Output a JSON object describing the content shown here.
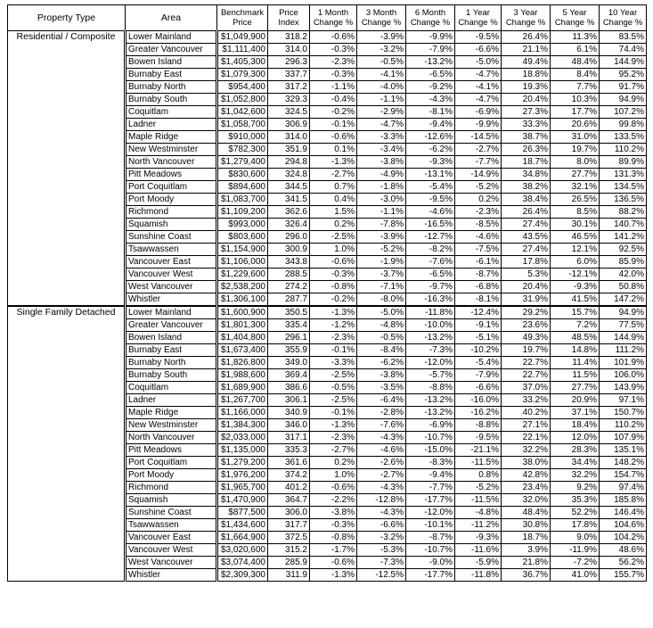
{
  "table": {
    "header": [
      "Property Type",
      "Area",
      "Benchmark Price",
      "Price Index",
      "1 Month Change %",
      "3 Month Change %",
      "6 Month Change %",
      "1 Year Change %",
      "3 Year Change %",
      "5 Year Change %",
      "10 Year Change %"
    ],
    "groups": [
      {
        "property_type": "Residential / Composite",
        "rows": [
          [
            "Lower Mainland",
            "$1,049,900",
            "318.2",
            "-0.6%",
            "-3.9%",
            "-9.9%",
            "-9.5%",
            "26.4%",
            "11.3%",
            "83.5%"
          ],
          [
            "Greater Vancouver",
            "$1,111,400",
            "314.0",
            "-0.3%",
            "-3.2%",
            "-7.9%",
            "-6.6%",
            "21.1%",
            "6.1%",
            "74.4%"
          ],
          [
            "Bowen Island",
            "$1,405,300",
            "296.3",
            "-2.3%",
            "-0.5%",
            "-13.2%",
            "-5.0%",
            "49.4%",
            "48.4%",
            "144.9%"
          ],
          [
            "Burnaby East",
            "$1,079,300",
            "337.7",
            "-0.3%",
            "-4.1%",
            "-6.5%",
            "-4.7%",
            "18.8%",
            "8.4%",
            "95.2%"
          ],
          [
            "Burnaby North",
            "$954,400",
            "317.2",
            "-1.1%",
            "-4.0%",
            "-9.2%",
            "-4.1%",
            "19.3%",
            "7.7%",
            "91.7%"
          ],
          [
            "Burnaby South",
            "$1,052,800",
            "329.3",
            "-0.4%",
            "-1.1%",
            "-4.3%",
            "-4.7%",
            "20.4%",
            "10.3%",
            "94.9%"
          ],
          [
            "Coquitlam",
            "$1,042,600",
            "324.5",
            "-0.2%",
            "-2.9%",
            "-8.1%",
            "-6.9%",
            "27.3%",
            "17.7%",
            "107.2%"
          ],
          [
            "Ladner",
            "$1,058,700",
            "306.9",
            "-0.1%",
            "-4.7%",
            "-9.4%",
            "-9.9%",
            "33.3%",
            "20.6%",
            "99.8%"
          ],
          [
            "Maple Ridge",
            "$910,000",
            "314.0",
            "-0.6%",
            "-3.3%",
            "-12.6%",
            "-14.5%",
            "38.7%",
            "31.0%",
            "133.5%"
          ],
          [
            "New Westminster",
            "$782,300",
            "351.9",
            "0.1%",
            "-3.4%",
            "-6.2%",
            "-2.7%",
            "26.3%",
            "19.7%",
            "110.2%"
          ],
          [
            "North Vancouver",
            "$1,279,400",
            "294.8",
            "-1.3%",
            "-3.8%",
            "-9.3%",
            "-7.7%",
            "18.7%",
            "8.0%",
            "89.9%"
          ],
          [
            "Pitt Meadows",
            "$830,600",
            "324.8",
            "-2.7%",
            "-4.9%",
            "-13.1%",
            "-14.9%",
            "34.8%",
            "27.7%",
            "131.3%"
          ],
          [
            "Port Coquitlam",
            "$894,600",
            "344.5",
            "0.7%",
            "-1.8%",
            "-5.4%",
            "-5.2%",
            "38.2%",
            "32.1%",
            "134.5%"
          ],
          [
            "Port Moody",
            "$1,083,700",
            "341.5",
            "0.4%",
            "-3.0%",
            "-9.5%",
            "0.2%",
            "38.4%",
            "26.5%",
            "136.5%"
          ],
          [
            "Richmond",
            "$1,109,200",
            "362.6",
            "1.5%",
            "-1.1%",
            "-4.6%",
            "-2.3%",
            "26.4%",
            "8.5%",
            "88.2%"
          ],
          [
            "Squamish",
            "$993,000",
            "326.4",
            "0.2%",
            "-7.8%",
            "-16.5%",
            "-8.5%",
            "27.4%",
            "30.1%",
            "140.7%"
          ],
          [
            "Sunshine Coast",
            "$803,600",
            "296.0",
            "-2.5%",
            "-3.9%",
            "-12.7%",
            "-4.6%",
            "43.5%",
            "46.5%",
            "141.2%"
          ],
          [
            "Tsawwassen",
            "$1,154,900",
            "300.9",
            "1.0%",
            "-5.2%",
            "-8.2%",
            "-7.5%",
            "27.4%",
            "12.1%",
            "92.5%"
          ],
          [
            "Vancouver East",
            "$1,106,000",
            "343.8",
            "-0.6%",
            "-1.9%",
            "-7.6%",
            "-6.1%",
            "17.8%",
            "6.0%",
            "85.9%"
          ],
          [
            "Vancouver West",
            "$1,229,600",
            "288.5",
            "-0.3%",
            "-3.7%",
            "-6.5%",
            "-8.7%",
            "5.3%",
            "-12.1%",
            "42.0%"
          ],
          [
            "West Vancouver",
            "$2,538,200",
            "274.2",
            "-0.8%",
            "-7.1%",
            "-9.7%",
            "-6.8%",
            "20.4%",
            "-9.3%",
            "50.8%"
          ],
          [
            "Whistler",
            "$1,306,100",
            "287.7",
            "-0.2%",
            "-8.0%",
            "-16.3%",
            "-8.1%",
            "31.9%",
            "41.5%",
            "147.2%"
          ]
        ]
      },
      {
        "property_type": "Single Family Detached",
        "rows": [
          [
            "Lower Mainland",
            "$1,600,900",
            "350.5",
            "-1.3%",
            "-5.0%",
            "-11.8%",
            "-12.4%",
            "29.2%",
            "15.7%",
            "94.9%"
          ],
          [
            "Greater Vancouver",
            "$1,801,300",
            "335.4",
            "-1.2%",
            "-4.8%",
            "-10.0%",
            "-9.1%",
            "23.6%",
            "7.2%",
            "77.5%"
          ],
          [
            "Bowen Island",
            "$1,404,800",
            "296.1",
            "-2.3%",
            "-0.5%",
            "-13.2%",
            "-5.1%",
            "49.3%",
            "48.5%",
            "144.9%"
          ],
          [
            "Burnaby East",
            "$1,673,400",
            "355.9",
            "-0.1%",
            "-8.4%",
            "-7.3%",
            "-10.2%",
            "19.7%",
            "14.8%",
            "111.2%"
          ],
          [
            "Burnaby North",
            "$1,826,800",
            "349.0",
            "-3.3%",
            "-6.2%",
            "-12.0%",
            "-5.4%",
            "22.7%",
            "11.4%",
            "101.9%"
          ],
          [
            "Burnaby South",
            "$1,988,600",
            "369.4",
            "-2.5%",
            "-3.8%",
            "-5.7%",
            "-7.9%",
            "22.7%",
            "11.5%",
            "106.0%"
          ],
          [
            "Coquitlam",
            "$1,689,900",
            "386.6",
            "-0.5%",
            "-3.5%",
            "-8.8%",
            "-6.6%",
            "37.0%",
            "27.7%",
            "143.9%"
          ],
          [
            "Ladner",
            "$1,267,700",
            "306.1",
            "-2.5%",
            "-6.4%",
            "-13.2%",
            "-16.0%",
            "33.2%",
            "20.9%",
            "97.1%"
          ],
          [
            "Maple Ridge",
            "$1,166,000",
            "340.9",
            "-0.1%",
            "-2.8%",
            "-13.2%",
            "-16.2%",
            "40.2%",
            "37.1%",
            "150.7%"
          ],
          [
            "New Westminster",
            "$1,384,300",
            "346.0",
            "-1.3%",
            "-7.6%",
            "-6.9%",
            "-8.8%",
            "27.1%",
            "18.4%",
            "110.2%"
          ],
          [
            "North Vancouver",
            "$2,033,000",
            "317.1",
            "-2.3%",
            "-4.3%",
            "-10.7%",
            "-9.5%",
            "22.1%",
            "12.0%",
            "107.9%"
          ],
          [
            "Pitt Meadows",
            "$1,135,000",
            "335.3",
            "-2.7%",
            "-4.6%",
            "-15.0%",
            "-21.1%",
            "32.2%",
            "28.3%",
            "135.1%"
          ],
          [
            "Port Coquitlam",
            "$1,279,200",
            "361.6",
            "0.2%",
            "-2.6%",
            "-8.3%",
            "-11.5%",
            "38.0%",
            "34.4%",
            "148.2%"
          ],
          [
            "Port Moody",
            "$1,976,200",
            "374.2",
            "1.0%",
            "-2.7%",
            "-9.4%",
            "0.8%",
            "42.8%",
            "32.2%",
            "154.7%"
          ],
          [
            "Richmond",
            "$1,965,700",
            "401.2",
            "-0.6%",
            "-4.3%",
            "-7.7%",
            "-5.2%",
            "23.4%",
            "9.2%",
            "97.4%"
          ],
          [
            "Squamish",
            "$1,470,900",
            "364.7",
            "-2.2%",
            "-12.8%",
            "-17.7%",
            "-11.5%",
            "32.0%",
            "35.3%",
            "185.8%"
          ],
          [
            "Sunshine Coast",
            "$877,500",
            "306.0",
            "-3.8%",
            "-4.3%",
            "-12.0%",
            "-4.8%",
            "48.4%",
            "52.2%",
            "146.4%"
          ],
          [
            "Tsawwassen",
            "$1,434,600",
            "317.7",
            "-0.3%",
            "-6.6%",
            "-10.1%",
            "-11.2%",
            "30.8%",
            "17.8%",
            "104.6%"
          ],
          [
            "Vancouver East",
            "$1,664,900",
            "372.5",
            "-0.8%",
            "-3.2%",
            "-8.7%",
            "-9.3%",
            "18.7%",
            "9.0%",
            "104.2%"
          ],
          [
            "Vancouver West",
            "$3,020,600",
            "315.2",
            "-1.7%",
            "-5.3%",
            "-10.7%",
            "-11.6%",
            "3.9%",
            "-11.9%",
            "48.6%"
          ],
          [
            "West Vancouver",
            "$3,074,400",
            "285.9",
            "-0.6%",
            "-7.3%",
            "-9.0%",
            "-5.9%",
            "21.8%",
            "-7.2%",
            "56.2%"
          ],
          [
            "Whistler",
            "$2,309,300",
            "311.9",
            "-1.3%",
            "-12.5%",
            "-17.7%",
            "-11.8%",
            "36.7%",
            "41.0%",
            "155.7%"
          ]
        ]
      }
    ]
  }
}
